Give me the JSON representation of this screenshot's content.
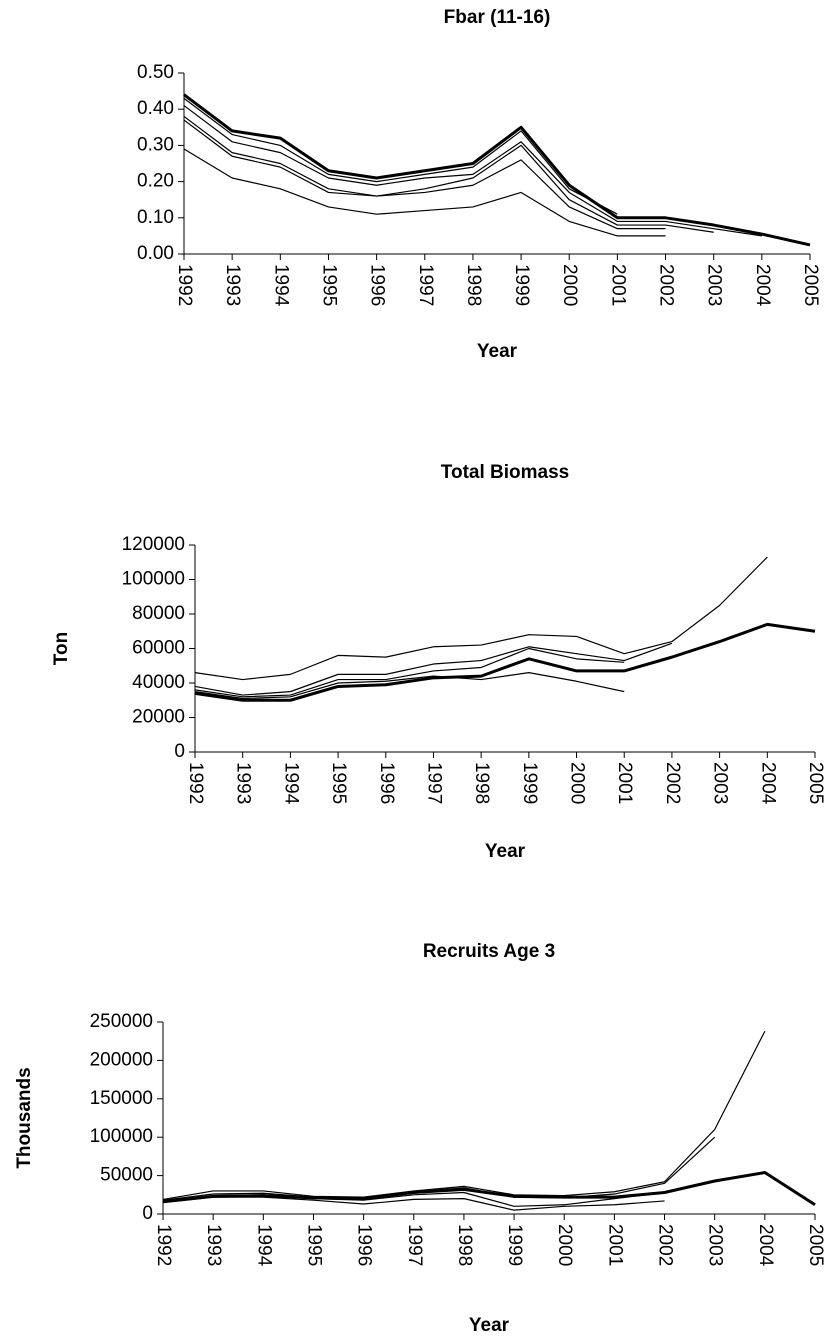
{
  "chart_data": [
    {
      "type": "line",
      "title": "Fbar (11-16)",
      "xlabel": "Year",
      "x": [
        1992,
        1993,
        1994,
        1995,
        1996,
        1997,
        1998,
        1999,
        2000,
        2001,
        2002,
        2003,
        2004,
        2005
      ],
      "ylim": [
        0,
        0.5
      ],
      "yticks": [
        {
          "value": 0,
          "label": "0.00"
        },
        {
          "value": 0.1,
          "label": "0.10"
        },
        {
          "value": 0.2,
          "label": "0.20"
        },
        {
          "value": 0.3,
          "label": "0.30"
        },
        {
          "value": 0.4,
          "label": "0.40"
        },
        {
          "value": 0.5,
          "label": "0.50"
        }
      ],
      "series": [
        {
          "color": "#000000",
          "values": [
            0.44,
            0.34,
            0.32,
            0.23,
            0.21,
            0.23,
            0.25,
            0.35,
            0.19,
            0.1,
            0.1,
            0.08,
            0.055,
            0.025
          ]
        },
        {
          "color": "#000000",
          "values": [
            0.43,
            0.33,
            0.3,
            0.22,
            0.2,
            0.22,
            0.24,
            0.34,
            0.18,
            0.11,
            null,
            null,
            null,
            null
          ]
        },
        {
          "color": "#000000",
          "values": [
            0.41,
            0.31,
            0.28,
            0.21,
            0.19,
            0.21,
            0.22,
            0.31,
            0.17,
            0.09,
            0.09,
            0.07,
            0.05,
            null
          ]
        },
        {
          "color": "#000000",
          "values": [
            0.38,
            0.28,
            0.25,
            0.18,
            0.16,
            0.18,
            0.21,
            0.3,
            0.15,
            0.08,
            0.08,
            0.06,
            null,
            null
          ]
        },
        {
          "color": "#000000",
          "values": [
            0.37,
            0.27,
            0.24,
            0.17,
            0.16,
            0.17,
            0.19,
            0.26,
            0.13,
            0.07,
            0.07,
            null,
            null,
            null
          ]
        },
        {
          "color": "#000000",
          "values": [
            0.29,
            0.21,
            0.18,
            0.13,
            0.11,
            0.12,
            0.13,
            0.17,
            0.09,
            0.05,
            0.05,
            null,
            null,
            null
          ]
        }
      ]
    },
    {
      "type": "line",
      "title": "Total Biomass",
      "xlabel": "Year",
      "ylabel": "Ton",
      "x": [
        1992,
        1993,
        1994,
        1995,
        1996,
        1997,
        1998,
        1999,
        2000,
        2001,
        2002,
        2003,
        2004,
        2005
      ],
      "ylim": [
        0,
        120000
      ],
      "yticks": [
        0,
        20000,
        40000,
        60000,
        80000,
        100000,
        120000
      ],
      "series": [
        {
          "color": "#000000",
          "values": [
            34000,
            30000,
            30000,
            38000,
            39000,
            43000,
            44000,
            54000,
            47000,
            47000,
            55000,
            64000,
            74000,
            70000
          ]
        },
        {
          "color": "#000000",
          "values": [
            46000,
            42000,
            45000,
            56000,
            55000,
            61000,
            62000,
            68000,
            67000,
            57000,
            64000,
            85000,
            113000,
            null
          ]
        },
        {
          "color": "#000000",
          "values": [
            38000,
            33000,
            35000,
            45000,
            45000,
            51000,
            53000,
            61000,
            57000,
            53000,
            63000,
            null,
            null,
            null
          ]
        },
        {
          "color": "#000000",
          "values": [
            36000,
            32000,
            33000,
            42000,
            42000,
            47000,
            49000,
            60000,
            54000,
            52000,
            null,
            null,
            null,
            null
          ]
        },
        {
          "color": "#000000",
          "values": [
            35000,
            31000,
            32000,
            40000,
            41000,
            44000,
            42000,
            46000,
            41000,
            35000,
            null,
            null,
            null,
            null
          ]
        }
      ]
    },
    {
      "type": "line",
      "title": "Recruits Age 3",
      "xlabel": "Year",
      "ylabel": "Thousands",
      "x": [
        1992,
        1993,
        1994,
        1995,
        1996,
        1997,
        1998,
        1999,
        2000,
        2001,
        2002,
        2003,
        2004,
        2005
      ],
      "ylim": [
        0,
        250000
      ],
      "yticks": [
        0,
        50000,
        100000,
        150000,
        200000,
        250000
      ],
      "series": [
        {
          "color": "#000000",
          "values": [
            16000,
            23000,
            24000,
            21000,
            20000,
            28000,
            32000,
            23000,
            22000,
            22000,
            28000,
            43000,
            54000,
            12000
          ]
        },
        {
          "color": "#000000",
          "values": [
            19000,
            30000,
            30000,
            23000,
            22000,
            30000,
            36000,
            25000,
            24000,
            29000,
            42000,
            110000,
            238000,
            null
          ]
        },
        {
          "color": "#000000",
          "values": [
            18000,
            26000,
            27000,
            22000,
            20000,
            29000,
            34000,
            22000,
            21000,
            26000,
            40000,
            100000,
            null,
            null
          ]
        },
        {
          "color": "#000000",
          "values": [
            17000,
            24000,
            25000,
            20000,
            18000,
            25000,
            28000,
            10000,
            12000,
            20000,
            28000,
            null,
            null,
            null
          ]
        },
        {
          "color": "#000000",
          "values": [
            15000,
            22000,
            22000,
            18000,
            13000,
            19000,
            20000,
            5000,
            10000,
            12000,
            17000,
            null,
            null,
            null
          ]
        }
      ]
    }
  ]
}
